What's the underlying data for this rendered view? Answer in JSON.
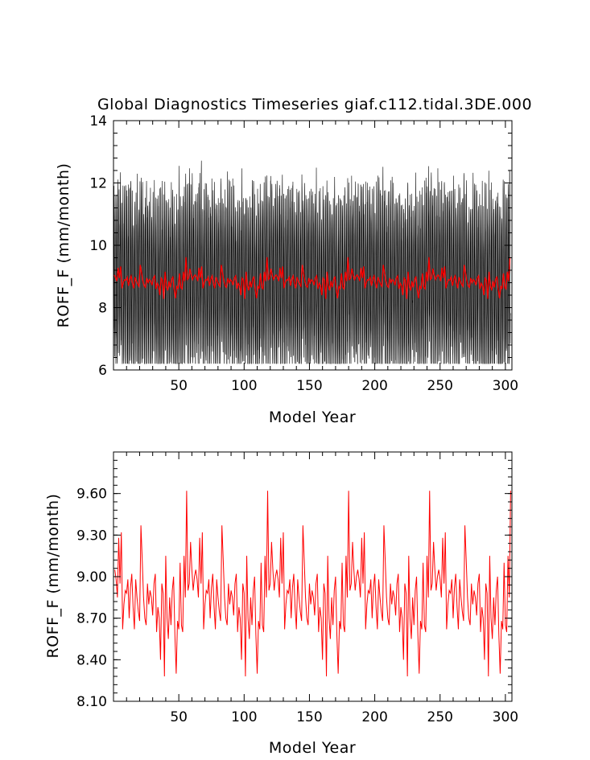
{
  "figure": {
    "title": "Global Diagnostics Timeseries giaf.c112.tidal.3DE.000"
  },
  "colors": {
    "monthly_series": "#000000",
    "annual_series": "#ff0000",
    "background": "#ffffff"
  },
  "chart_data": [
    {
      "type": "line",
      "title": "Global Diagnostics Timeseries giaf.c112.tidal.3DE.000",
      "xlabel": "Model Year",
      "ylabel": "ROFF_F (mm/month)",
      "xlim": [
        0,
        305
      ],
      "ylim": [
        6,
        14
      ],
      "xticks": [
        50,
        100,
        150,
        200,
        250,
        300
      ],
      "yticks": [
        6,
        8,
        10,
        12,
        14
      ],
      "ytick_labels": [
        "6",
        "8",
        "10",
        "12",
        "14"
      ],
      "grid": false,
      "series": [
        {
          "name": "",
          "color": "#000000",
          "resolution": "monthly",
          "range": [
            6.2,
            13.2
          ],
          "annual_cycle_peak": 12.2,
          "annual_cycle_trough": 6.8
        },
        {
          "name": "",
          "color": "#ff0000",
          "resolution": "annual"
        }
      ]
    },
    {
      "type": "line",
      "title": "",
      "xlabel": "Model Year",
      "ylabel": "ROFF_F (mm/month)",
      "xlim": [
        0,
        305
      ],
      "ylim": [
        8.1,
        9.9
      ],
      "xticks": [
        50,
        100,
        150,
        200,
        250,
        300
      ],
      "yticks": [
        8.1,
        8.4,
        8.7,
        9.0,
        9.3,
        9.6
      ],
      "ytick_labels": [
        "8.10",
        "8.40",
        "8.70",
        "9.00",
        "9.30",
        "9.60"
      ],
      "grid": false,
      "forcing_cycle_years": 62,
      "series": [
        {
          "name": "",
          "color": "#ff0000",
          "x": [
            1,
            2,
            3,
            4,
            5,
            6,
            7,
            8,
            9,
            10,
            11,
            12,
            13,
            14,
            15,
            16,
            17,
            18,
            19,
            20,
            21,
            22,
            23,
            24,
            25,
            26,
            27,
            28,
            29,
            30,
            31,
            32,
            33,
            34,
            35,
            36,
            37,
            38,
            39,
            40,
            41,
            42,
            43,
            44,
            45,
            46,
            47,
            48,
            49,
            50,
            51,
            52,
            53,
            54,
            55,
            56,
            57,
            58,
            59,
            60,
            61,
            62
          ],
          "cycle_values": [
            9.05,
            8.98,
            8.85,
            9.28,
            8.95,
            9.32,
            8.62,
            8.8,
            8.9,
            8.88,
            8.98,
            8.7,
            8.92,
            9.02,
            8.78,
            8.62,
            8.98,
            8.85,
            8.75,
            8.68,
            9.37,
            9.12,
            8.85,
            8.7,
            8.65,
            8.95,
            8.8,
            8.9,
            8.85,
            8.72,
            8.95,
            9.02,
            8.6,
            8.78,
            8.7,
            8.4,
            8.95,
            8.88,
            8.28,
            9.15,
            8.7,
            8.55,
            8.85,
            8.65,
            8.9,
            9.0,
            8.58,
            8.3,
            8.68,
            8.62,
            9.1,
            8.65,
            8.6,
            9.15,
            8.85,
            9.62,
            8.9,
            8.95,
            9.25,
            9.05,
            8.9,
            9.0
          ]
        }
      ]
    }
  ]
}
